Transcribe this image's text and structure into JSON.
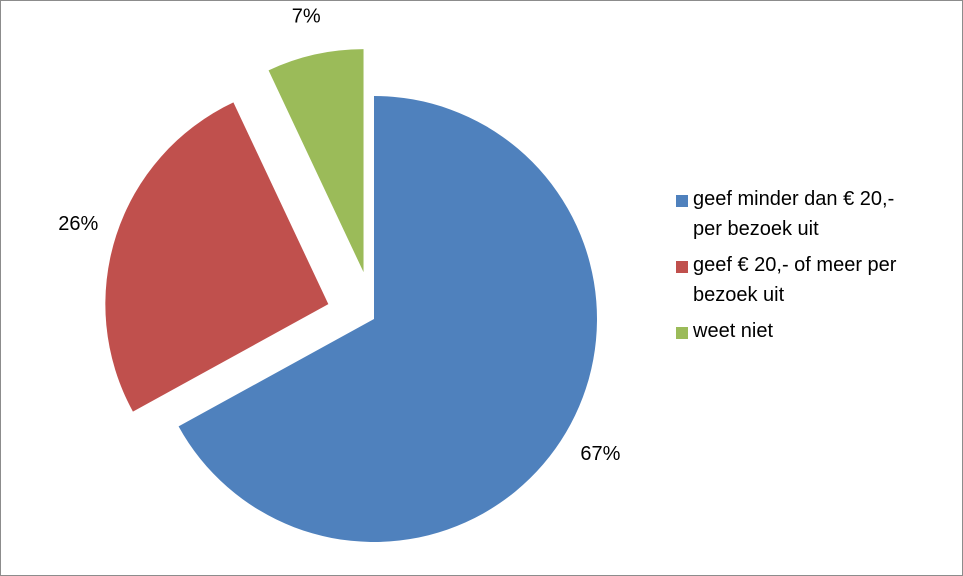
{
  "chart_data": {
    "type": "pie",
    "title": "",
    "slices": [
      {
        "label": "geef minder dan € 20,- per bezoek uit",
        "value": 67,
        "display": "67%",
        "color": "#4f81bd"
      },
      {
        "label": "geef € 20,- of meer per bezoek uit",
        "value": 26,
        "display": "26%",
        "color": "#c0504d"
      },
      {
        "label": "weet niet",
        "value": 7,
        "display": "7%",
        "color": "#9bbb59"
      }
    ],
    "exploded": true,
    "legend_position": "right"
  },
  "legend": {
    "items": [
      {
        "label": "geef minder dan € 20,-\nper bezoek uit",
        "color": "#4f81bd"
      },
      {
        "label": "geef € 20,- of meer per\nbezoek uit",
        "color": "#c0504d"
      },
      {
        "label": "weet niet",
        "color": "#9bbb59"
      }
    ]
  }
}
